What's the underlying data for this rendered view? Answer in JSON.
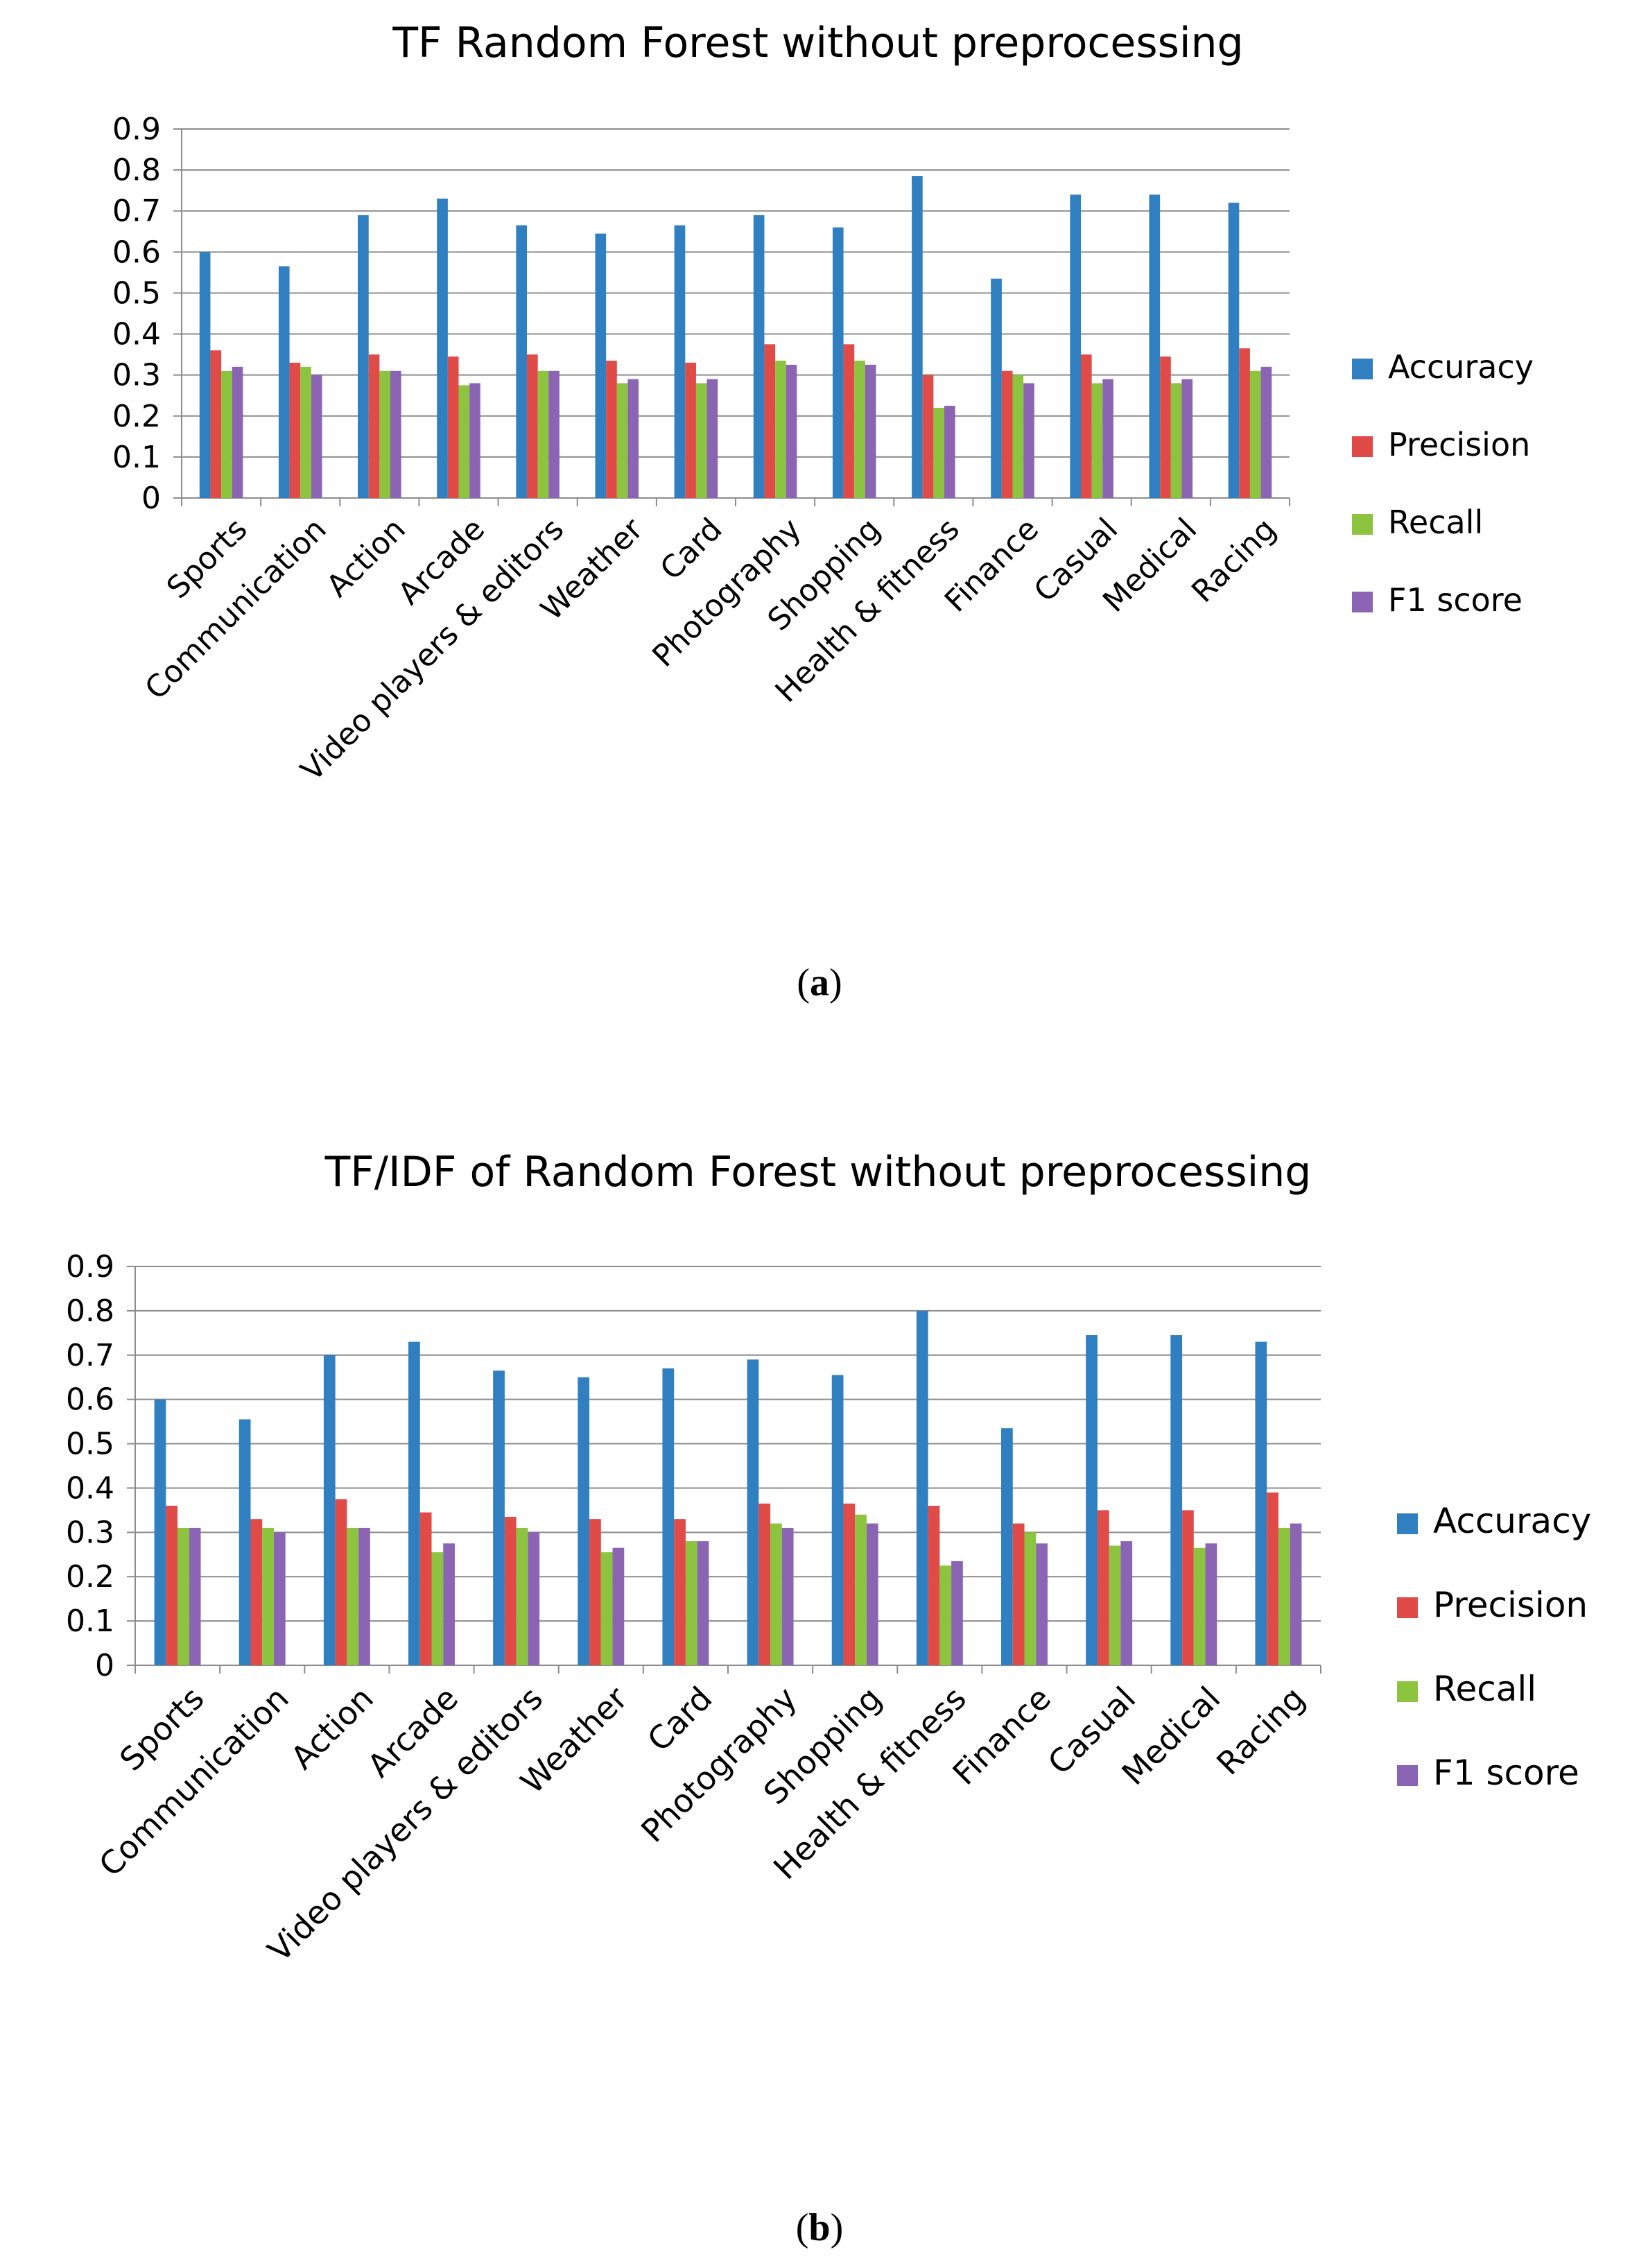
{
  "chart_data": [
    {
      "type": "bar",
      "title": "TF Random Forest without preprocessing",
      "caption_open": "(",
      "caption_letter": "a",
      "caption_close": ")",
      "categories": [
        "Sports",
        "Communication",
        "Action",
        "Arcade",
        "Video players & editors",
        "Weather",
        "Card",
        "Photography",
        "Shopping",
        "Health & fitness",
        "Finance",
        "Casual",
        "Medical",
        "Racing"
      ],
      "series": [
        {
          "name": "Accuracy",
          "color": "#2f7fc1",
          "values": [
            0.6,
            0.565,
            0.69,
            0.73,
            0.665,
            0.645,
            0.665,
            0.69,
            0.66,
            0.785,
            0.535,
            0.74,
            0.74,
            0.72
          ]
        },
        {
          "name": "Precision",
          "color": "#e04a47",
          "values": [
            0.36,
            0.33,
            0.35,
            0.345,
            0.35,
            0.335,
            0.33,
            0.375,
            0.375,
            0.3,
            0.31,
            0.35,
            0.345,
            0.365
          ]
        },
        {
          "name": "Recall",
          "color": "#8cc43f",
          "values": [
            0.31,
            0.32,
            0.31,
            0.275,
            0.31,
            0.28,
            0.28,
            0.335,
            0.335,
            0.22,
            0.3,
            0.28,
            0.28,
            0.31
          ]
        },
        {
          "name": "F1 score",
          "color": "#8b64b4",
          "values": [
            0.32,
            0.3,
            0.31,
            0.28,
            0.31,
            0.29,
            0.29,
            0.325,
            0.325,
            0.225,
            0.28,
            0.29,
            0.29,
            0.32
          ]
        }
      ],
      "yticks": [
        "0",
        "0.1",
        "0.2",
        "0.3",
        "0.4",
        "0.5",
        "0.6",
        "0.7",
        "0.8",
        "0.9"
      ],
      "ylim": [
        0,
        0.9
      ],
      "xlabel": "",
      "ylabel": "",
      "legend": "right",
      "grid": true
    },
    {
      "type": "bar",
      "title": "TF/IDF of Random Forest without preprocessing",
      "caption_open": "(",
      "caption_letter": "b",
      "caption_close": ")",
      "categories": [
        "Sports",
        "Communication",
        "Action",
        "Arcade",
        "Video players & editors",
        "Weather",
        "Card",
        "Photography",
        "Shopping",
        "Health & fitness",
        "Finance",
        "Casual",
        "Medical",
        "Racing"
      ],
      "series": [
        {
          "name": "Accuracy",
          "color": "#2f7fc1",
          "values": [
            0.6,
            0.555,
            0.7,
            0.73,
            0.665,
            0.65,
            0.67,
            0.69,
            0.655,
            0.8,
            0.535,
            0.745,
            0.745,
            0.73
          ]
        },
        {
          "name": "Precision",
          "color": "#e04a47",
          "values": [
            0.36,
            0.33,
            0.375,
            0.345,
            0.335,
            0.33,
            0.33,
            0.365,
            0.365,
            0.36,
            0.32,
            0.35,
            0.35,
            0.39
          ]
        },
        {
          "name": "Recall",
          "color": "#8cc43f",
          "values": [
            0.31,
            0.31,
            0.31,
            0.255,
            0.31,
            0.255,
            0.28,
            0.32,
            0.34,
            0.225,
            0.3,
            0.27,
            0.265,
            0.31
          ]
        },
        {
          "name": "F1 score",
          "color": "#8b64b4",
          "values": [
            0.31,
            0.3,
            0.31,
            0.275,
            0.3,
            0.265,
            0.28,
            0.31,
            0.32,
            0.235,
            0.275,
            0.28,
            0.275,
            0.32
          ]
        }
      ],
      "yticks": [
        "0",
        "0.1",
        "0.2",
        "0.3",
        "0.4",
        "0.5",
        "0.6",
        "0.7",
        "0.8",
        "0.9"
      ],
      "ylim": [
        0,
        0.9
      ],
      "xlabel": "",
      "ylabel": "",
      "legend": "right",
      "grid": true
    }
  ]
}
